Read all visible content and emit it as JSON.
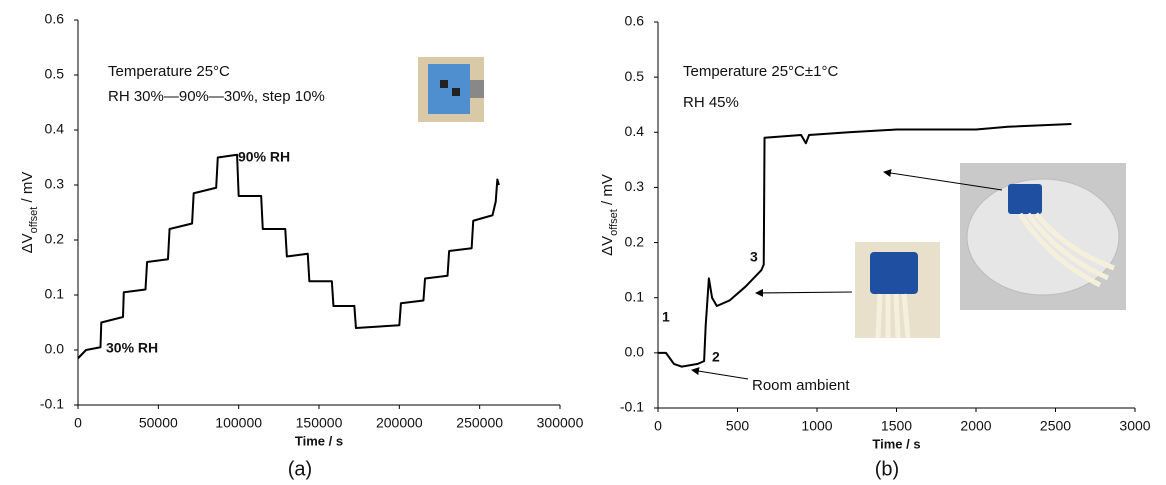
{
  "chart_data": [
    {
      "type": "line",
      "panel_label": "(a)",
      "xlabel": "Time / s",
      "ylabel": [
        "ΔV",
        "offset",
        " / mV"
      ],
      "xlim": [
        0,
        300000
      ],
      "ylim": [
        -0.1,
        0.6
      ],
      "xticks": [
        0,
        50000,
        100000,
        150000,
        200000,
        250000,
        300000
      ],
      "yticks": [
        -0.1,
        {
          "value": 0,
          "label": "0.0"
        },
        0.1,
        0.2,
        0.3,
        0.4,
        0.5,
        0.6
      ],
      "x": [
        0,
        5000,
        14000,
        14500,
        28000,
        28500,
        42000,
        43000,
        56000,
        57000,
        71000,
        72000,
        86000,
        87000,
        99000,
        100000,
        114000,
        115000,
        129000,
        130000,
        143000,
        144000,
        158000,
        159000,
        172000,
        173000,
        200000,
        201000,
        215000,
        216000,
        230000,
        231000,
        245000,
        246000,
        258000,
        260000,
        261000,
        262000
      ],
      "series": [
        {
          "color": "#000000",
          "values": [
            -0.015,
            0.0,
            0.005,
            0.05,
            0.06,
            0.105,
            0.11,
            0.16,
            0.165,
            0.22,
            0.23,
            0.285,
            0.295,
            0.35,
            0.355,
            0.28,
            0.28,
            0.22,
            0.22,
            0.17,
            0.175,
            0.125,
            0.125,
            0.08,
            0.08,
            0.04,
            0.045,
            0.085,
            0.09,
            0.13,
            0.135,
            0.18,
            0.185,
            0.235,
            0.245,
            0.27,
            0.31,
            0.3
          ]
        }
      ],
      "annotations": [
        "Temperature 25°C",
        "RH 30%—90%—30%, step 10%",
        "90% RH",
        "30% RH"
      ]
    },
    {
      "type": "line",
      "panel_label": "(b)",
      "xlabel": "Time / s",
      "ylabel": [
        "ΔV",
        "offset",
        " / mV"
      ],
      "xlim": [
        0,
        3000
      ],
      "ylim": [
        -0.1,
        0.6
      ],
      "xticks": [
        0,
        500,
        1000,
        1500,
        2000,
        2500,
        3000
      ],
      "yticks": [
        -0.1,
        {
          "value": 0,
          "label": "0.0"
        },
        0.1,
        0.2,
        0.3,
        0.4,
        0.5,
        0.6
      ],
      "x": [
        0,
        50,
        100,
        150,
        250,
        290,
        300,
        320,
        340,
        370,
        450,
        550,
        650,
        665,
        670,
        900,
        930,
        950,
        1200,
        1500,
        2000,
        2200,
        2600
      ],
      "series": [
        {
          "color": "#000000",
          "values": [
            0.0,
            0.0,
            -0.02,
            -0.025,
            -0.02,
            -0.015,
            0.05,
            0.135,
            0.1,
            0.085,
            0.095,
            0.12,
            0.15,
            0.16,
            0.39,
            0.395,
            0.38,
            0.395,
            0.4,
            0.405,
            0.405,
            0.41,
            0.415
          ]
        }
      ],
      "annotations": [
        "Temperature 25°C±1°C",
        "RH 45%",
        "1",
        "2",
        "3",
        "Room ambient"
      ]
    }
  ]
}
